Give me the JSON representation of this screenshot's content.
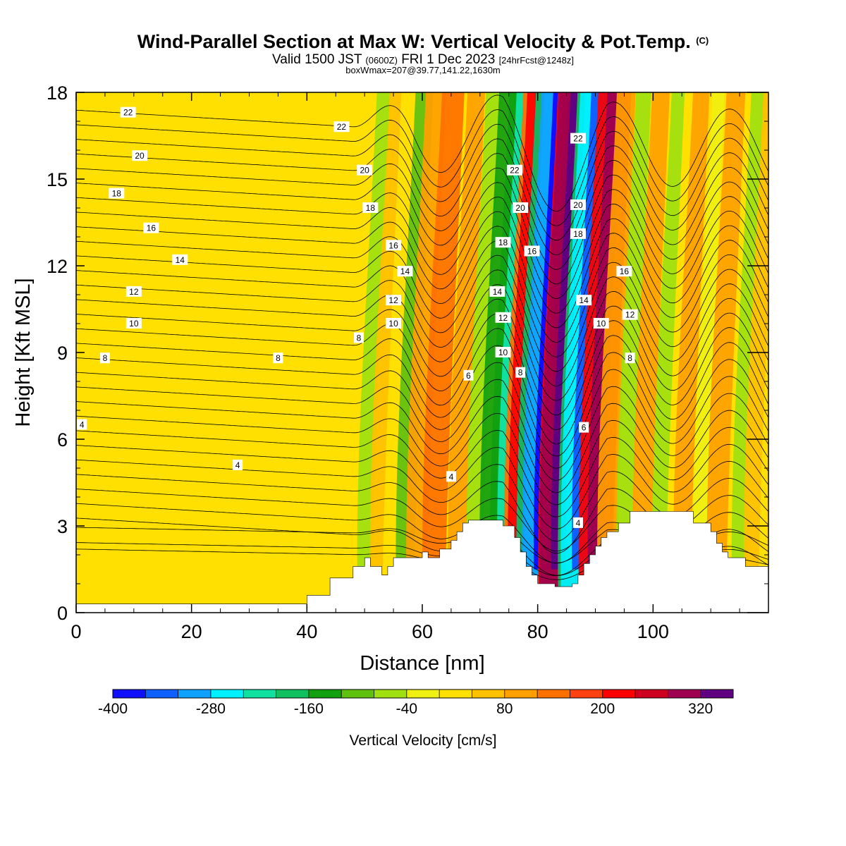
{
  "title": {
    "main": "Wind-Parallel Section at Max W: Vertical Velocity & Pot.Temp.",
    "copyright": "(C)",
    "valid_prefix": "Valid 1500 JST",
    "utc": "(0600Z)",
    "valid_date": "FRI 1 Dec 2023",
    "forecast": "[24hrFcst@1248z]",
    "box_info": "boxWmax=207@39.77,141.22,1630m"
  },
  "chart_data": {
    "type": "heatmap",
    "xlabel": "Distance [nm]",
    "ylabel": "Height [Kft MSL]",
    "xlim": [
      0,
      120
    ],
    "ylim": [
      0,
      18
    ],
    "x_ticks": [
      0,
      20,
      40,
      60,
      80,
      100
    ],
    "y_ticks": [
      0,
      3,
      6,
      9,
      12,
      15,
      18
    ],
    "colorbar": {
      "label": "Vertical Velocity [cm/s]",
      "tick_labels": [
        -400,
        -280,
        -160,
        -40,
        80,
        200,
        320
      ],
      "range": [
        -400,
        360
      ],
      "colors": [
        "#1010ff",
        "#1060ff",
        "#10a0ff",
        "#00f0ff",
        "#10e0a0",
        "#10c060",
        "#10a010",
        "#60c010",
        "#a0e010",
        "#f0f010",
        "#ffe000",
        "#ffc000",
        "#ffa000",
        "#ff7000",
        "#ff4010",
        "#ff0000",
        "#d00020",
        "#a00050",
        "#600080"
      ]
    },
    "velocity_columns": [
      {
        "x": 50,
        "w": -60
      },
      {
        "x": 52,
        "w": 40
      },
      {
        "x": 57,
        "w": -90
      },
      {
        "x": 59,
        "w": 110
      },
      {
        "x": 62,
        "w": 130
      },
      {
        "x": 66,
        "w": 90
      },
      {
        "x": 69,
        "w": -70
      },
      {
        "x": 72,
        "w": -140
      },
      {
        "x": 74,
        "w": -160
      },
      {
        "x": 76,
        "w": 120
      },
      {
        "x": 77.5,
        "w": 200
      },
      {
        "x": 79,
        "w": -200
      },
      {
        "x": 81,
        "w": -300
      },
      {
        "x": 83,
        "w": 220
      },
      {
        "x": 84,
        "w": 300
      },
      {
        "x": 86,
        "w": -180
      },
      {
        "x": 87.5,
        "w": -280
      },
      {
        "x": 90,
        "w": 220
      },
      {
        "x": 92,
        "w": 100
      },
      {
        "x": 95,
        "w": -70
      },
      {
        "x": 98,
        "w": 90
      },
      {
        "x": 101,
        "w": -50
      },
      {
        "x": 105,
        "w": 80
      },
      {
        "x": 108,
        "w": -40
      },
      {
        "x": 111,
        "w": 100
      },
      {
        "x": 115,
        "w": -70
      },
      {
        "x": 117,
        "w": 60
      }
    ],
    "theta_contours": [
      {
        "level": 4,
        "labels": [
          [
            1,
            6.5
          ],
          [
            28,
            5.1
          ],
          [
            65,
            4.7
          ],
          [
            87,
            3.1
          ]
        ]
      },
      {
        "level": 6,
        "labels": [
          [
            68,
            8.2
          ],
          [
            88,
            6.4
          ]
        ]
      },
      {
        "level": 8,
        "labels": [
          [
            5,
            8.8
          ],
          [
            35,
            8.8
          ],
          [
            49,
            9.5
          ],
          [
            77,
            8.3
          ],
          [
            96,
            8.8
          ]
        ]
      },
      {
        "level": 10,
        "labels": [
          [
            10,
            10.0
          ],
          [
            55,
            10.0
          ],
          [
            74,
            9.0
          ],
          [
            91,
            10.0
          ]
        ]
      },
      {
        "level": 12,
        "labels": [
          [
            10,
            11.1
          ],
          [
            55,
            10.8
          ],
          [
            74,
            10.2
          ],
          [
            96,
            10.3
          ]
        ]
      },
      {
        "level": 14,
        "labels": [
          [
            18,
            12.2
          ],
          [
            57,
            11.8
          ],
          [
            73,
            11.1
          ],
          [
            88,
            10.8
          ]
        ]
      },
      {
        "level": 16,
        "labels": [
          [
            13,
            13.3
          ],
          [
            55,
            12.7
          ],
          [
            79,
            12.5
          ],
          [
            95,
            11.8
          ]
        ]
      },
      {
        "level": 18,
        "labels": [
          [
            7,
            14.5
          ],
          [
            51,
            14.0
          ],
          [
            74,
            12.8
          ],
          [
            87,
            13.1
          ]
        ]
      },
      {
        "level": 20,
        "labels": [
          [
            11,
            15.8
          ],
          [
            50,
            15.3
          ],
          [
            77,
            14.0
          ],
          [
            87,
            14.1
          ]
        ]
      },
      {
        "level": 22,
        "labels": [
          [
            9,
            17.3
          ],
          [
            46,
            16.8
          ],
          [
            76,
            15.3
          ],
          [
            87,
            16.4
          ]
        ]
      }
    ],
    "terrain_outline": [
      [
        0,
        0.3
      ],
      [
        40,
        0.3
      ],
      [
        40,
        0.6
      ],
      [
        44,
        0.6
      ],
      [
        44,
        1.2
      ],
      [
        48,
        1.2
      ],
      [
        48,
        1.6
      ],
      [
        50,
        1.6
      ],
      [
        50,
        1.9
      ],
      [
        51,
        1.9
      ],
      [
        51,
        1.6
      ],
      [
        53,
        1.6
      ],
      [
        53,
        1.3
      ],
      [
        54,
        1.3
      ],
      [
        54,
        1.6
      ],
      [
        55,
        1.6
      ],
      [
        55,
        1.9
      ],
      [
        60,
        1.9
      ],
      [
        60,
        2.1
      ],
      [
        61,
        2.1
      ],
      [
        61,
        1.9
      ],
      [
        63,
        1.9
      ],
      [
        63,
        2.2
      ],
      [
        65,
        2.2
      ],
      [
        65,
        2.5
      ],
      [
        66,
        2.5
      ],
      [
        66,
        2.8
      ],
      [
        67,
        2.8
      ],
      [
        67,
        3.1
      ],
      [
        68,
        3.1
      ],
      [
        68,
        3.2
      ],
      [
        74,
        3.2
      ],
      [
        74,
        3.0
      ],
      [
        76,
        3.0
      ],
      [
        76,
        2.6
      ],
      [
        77,
        2.6
      ],
      [
        77,
        2.1
      ],
      [
        78,
        2.1
      ],
      [
        78,
        1.6
      ],
      [
        79,
        1.6
      ],
      [
        79,
        1.3
      ],
      [
        80,
        1.3
      ],
      [
        80,
        1.0
      ],
      [
        83,
        1.0
      ],
      [
        83,
        0.9
      ],
      [
        86,
        0.9
      ],
      [
        86,
        1.0
      ],
      [
        87,
        1.0
      ],
      [
        87,
        1.3
      ],
      [
        88,
        1.3
      ],
      [
        88,
        1.7
      ],
      [
        89,
        1.7
      ],
      [
        89,
        2.0
      ],
      [
        90,
        2.0
      ],
      [
        90,
        2.3
      ],
      [
        91,
        2.3
      ],
      [
        91,
        2.6
      ],
      [
        92,
        2.6
      ],
      [
        92,
        2.8
      ],
      [
        94,
        2.8
      ],
      [
        94,
        3.1
      ],
      [
        96,
        3.1
      ],
      [
        96,
        3.5
      ],
      [
        107,
        3.5
      ],
      [
        107,
        3.1
      ],
      [
        110,
        3.1
      ],
      [
        110,
        2.8
      ],
      [
        111,
        2.8
      ],
      [
        111,
        2.4
      ],
      [
        112,
        2.4
      ],
      [
        112,
        2.1
      ],
      [
        113,
        2.1
      ],
      [
        113,
        1.9
      ],
      [
        116,
        1.9
      ],
      [
        116,
        1.6
      ],
      [
        120,
        1.6
      ]
    ]
  }
}
